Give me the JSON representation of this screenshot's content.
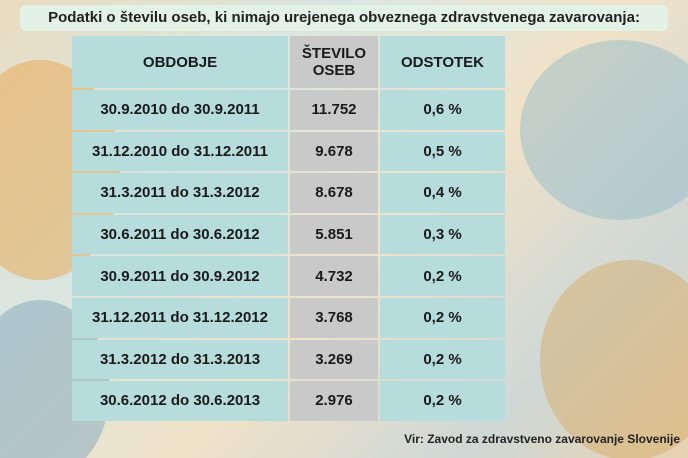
{
  "title": "Podatki o številu oseb, ki nimajo urejenega obveznega zdravstvenega zavarovanja:",
  "table": {
    "header": [
      "OBDOBJE",
      "ŠTEVILO OSEB",
      "ODSTOTEK"
    ],
    "rows": [
      [
        "30.9.2010 do 30.9.2011",
        "11.752",
        "0,6 %"
      ],
      [
        "31.12.2010 do 31.12.2011",
        "9.678",
        "0,5 %"
      ],
      [
        "31.3.2011 do 31.3.2012",
        "8.678",
        "0,4 %"
      ],
      [
        "30.6.2011 do 30.6.2012",
        "5.851",
        "0,3 %"
      ],
      [
        "30.9.2011 do 30.9.2012",
        "4.732",
        "0,2 %"
      ],
      [
        "31.12.2011 do 31.12.2012",
        "3.768",
        "0,2 %"
      ],
      [
        "31.3.2012 do 31.3.2013",
        "3.269",
        "0,2 %"
      ],
      [
        "30.6.2012 do 30.6.2013",
        "2.976",
        "0,2 %"
      ]
    ]
  },
  "source": "Vir: Zavod za zdravstveno zavarovanje Slovenije"
}
